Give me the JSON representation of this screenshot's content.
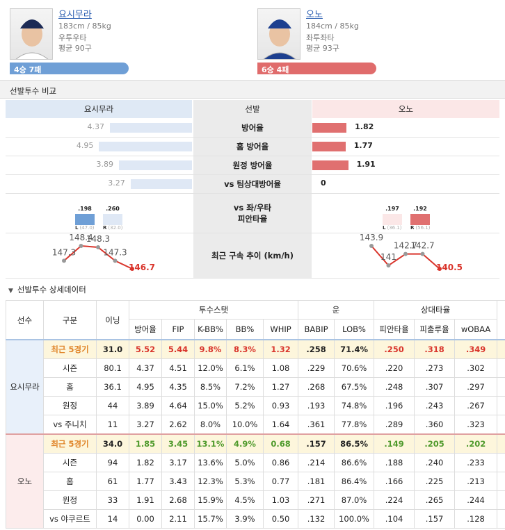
{
  "players": [
    {
      "name": "요시무라",
      "height_weight": "183cm / 85kg",
      "hand": "우투우타",
      "avg_pitches": "평균 90구",
      "record": "4승 7패",
      "color": "#6f9fd6"
    },
    {
      "name": "오노",
      "height_weight": "184cm / 85kg",
      "hand": "좌투좌타",
      "avg_pitches": "평균 93구",
      "record": "6승 4패",
      "color": "#e06c6c"
    }
  ],
  "compare": {
    "title": "선발투수 비교",
    "header": [
      "요시무라",
      "선발",
      "오노"
    ],
    "rows": [
      {
        "label": "방어율",
        "left": 4.37,
        "right": 1.82
      },
      {
        "label": "홈 방어율",
        "left": 4.95,
        "right": 1.77
      },
      {
        "label": "원정 방어율",
        "left": 3.89,
        "right": 1.91
      },
      {
        "label": "vs 팀상대방어율",
        "left": 3.27,
        "right": 0
      }
    ],
    "split": {
      "label": [
        "vs 좌/우타",
        "피안타율"
      ],
      "left": [
        {
          "avg": ".198",
          "side": "L",
          "pa": "(47.0)"
        },
        {
          "avg": ".260",
          "side": "R",
          "pa": "(32.0)"
        }
      ],
      "right": [
        {
          "avg": ".197",
          "side": "L",
          "pa": "(36.1)"
        },
        {
          "avg": ".192",
          "side": "R",
          "pa": "(56.1)"
        }
      ]
    },
    "velocity": {
      "label": "최근 구속 추이 (km/h)",
      "left": [
        147.3,
        148.4,
        148.3,
        147.3,
        146.7
      ],
      "right": [
        143.9,
        141,
        142.7,
        142.7,
        140.5
      ]
    }
  },
  "detail": {
    "title": "선발투수 상세데이터",
    "header_top": [
      "선수",
      "구분",
      "이닝",
      "투수스탯",
      "운",
      "상대타율"
    ],
    "header_sub": [
      "방어율",
      "FIP",
      "K-BB%",
      "BB%",
      "WHIP",
      "BABIP",
      "LOB%",
      "피안타율",
      "피출루율",
      "wOBAA"
    ],
    "groups": [
      {
        "player": "요시무라",
        "highlight_color": "#d9342b",
        "rows": [
          [
            "최근 5경기",
            "31.0",
            "5.52",
            "5.44",
            "9.8%",
            "8.3%",
            "1.32",
            ".258",
            "71.4%",
            ".250",
            ".318",
            ".349"
          ],
          [
            "시즌",
            "80.1",
            "4.37",
            "4.51",
            "12.0%",
            "6.1%",
            "1.08",
            ".229",
            "70.6%",
            ".220",
            ".273",
            ".302"
          ],
          [
            "홈",
            "36.1",
            "4.95",
            "4.35",
            "8.5%",
            "7.2%",
            "1.27",
            ".268",
            "67.5%",
            ".248",
            ".307",
            ".297"
          ],
          [
            "원정",
            "44",
            "3.89",
            "4.64",
            "15.0%",
            "5.2%",
            "0.93",
            ".193",
            "74.8%",
            ".196",
            ".243",
            ".267"
          ],
          [
            "vs 주니치",
            "11",
            "3.27",
            "2.62",
            "8.0%",
            "10.0%",
            "1.64",
            ".361",
            "77.8%",
            ".289",
            ".360",
            ".323"
          ]
        ]
      },
      {
        "player": "오노",
        "highlight_color": "#4f9a2c",
        "rows": [
          [
            "최근 5경기",
            "34.0",
            "1.85",
            "3.45",
            "13.1%",
            "4.9%",
            "0.68",
            ".157",
            "86.5%",
            ".149",
            ".205",
            ".202"
          ],
          [
            "시즌",
            "94",
            "1.82",
            "3.17",
            "13.6%",
            "5.0%",
            "0.86",
            ".214",
            "86.6%",
            ".188",
            ".240",
            ".233"
          ],
          [
            "홈",
            "61",
            "1.77",
            "3.43",
            "12.3%",
            "5.3%",
            "0.77",
            ".181",
            "86.4%",
            ".166",
            ".225",
            ".213"
          ],
          [
            "원정",
            "33",
            "1.91",
            "2.68",
            "15.9%",
            "4.5%",
            "1.03",
            ".271",
            "87.0%",
            ".224",
            ".265",
            ".244"
          ],
          [
            "vs 야쿠르트",
            "14",
            "0.00",
            "2.11",
            "15.7%",
            "3.9%",
            "0.50",
            ".132",
            "100.0%",
            ".104",
            ".157",
            ".128"
          ]
        ]
      }
    ]
  }
}
